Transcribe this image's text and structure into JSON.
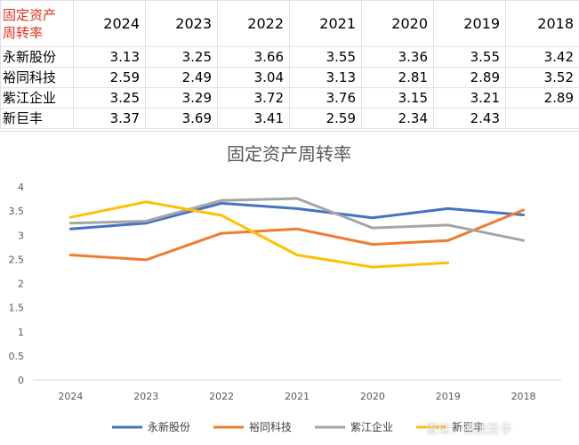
{
  "table": {
    "header_label": "固定资产周转率",
    "years": [
      "2024",
      "2023",
      "2022",
      "2021",
      "2020",
      "2019",
      "2018"
    ],
    "rows": [
      {
        "name": "永新股份",
        "values": [
          "3.13",
          "3.25",
          "3.66",
          "3.55",
          "3.36",
          "3.55",
          "3.42"
        ]
      },
      {
        "name": "裕同科技",
        "values": [
          "2.59",
          "2.49",
          "3.04",
          "3.13",
          "2.81",
          "2.89",
          "3.52"
        ]
      },
      {
        "name": "紫江企业",
        "values": [
          "3.25",
          "3.29",
          "3.72",
          "3.76",
          "3.15",
          "3.21",
          "2.89"
        ]
      },
      {
        "name": "新巨丰",
        "values": [
          "3.37",
          "3.69",
          "3.41",
          "2.59",
          "2.34",
          "2.43",
          ""
        ]
      }
    ]
  },
  "chart_data": {
    "type": "line",
    "title": "固定资产周转率",
    "categories": [
      "2024",
      "2023",
      "2022",
      "2021",
      "2020",
      "2019",
      "2018"
    ],
    "ylim": [
      0,
      4
    ],
    "yticks": [
      0,
      0.5,
      1,
      1.5,
      2,
      2.5,
      3,
      3.5,
      4
    ],
    "ytick_labels": [
      "0",
      "0.5",
      "1",
      "1.5",
      "2",
      "2.5",
      "3",
      "3.5",
      "4"
    ],
    "grid": false,
    "legend": "bottom",
    "series": [
      {
        "name": "永新股份",
        "color": "#4472c4",
        "values": [
          3.13,
          3.25,
          3.66,
          3.55,
          3.36,
          3.55,
          3.42
        ]
      },
      {
        "name": "裕同科技",
        "color": "#ed7d31",
        "values": [
          2.59,
          2.49,
          3.04,
          3.13,
          2.81,
          2.89,
          3.52
        ]
      },
      {
        "name": "紫江企业",
        "color": "#a5a5a5",
        "values": [
          3.25,
          3.29,
          3.72,
          3.76,
          3.15,
          3.21,
          2.89
        ]
      },
      {
        "name": "新巨丰",
        "color": "#ffc000",
        "values": [
          3.37,
          3.69,
          3.41,
          2.59,
          2.34,
          2.43,
          null
        ]
      }
    ]
  },
  "watermark": "雪球：德加圣手"
}
